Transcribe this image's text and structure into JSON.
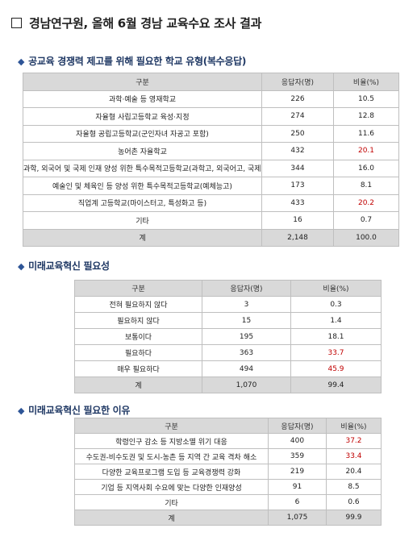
{
  "page": {
    "title": "경남연구원, 올해 6월 경남 교육수요 조사 결과"
  },
  "sections": [
    {
      "title": "공교육 경쟁력 제고를 위해 필요한 학교 유형(복수응답)",
      "headers": [
        "구분",
        "응답자(명)",
        "비율(%)"
      ],
      "rows": [
        {
          "label": "과학·예술 등 영재학교",
          "count": "226",
          "ratio": "10.5",
          "highlight": false
        },
        {
          "label": "자율형 사립고등학교 육성·지정",
          "count": "274",
          "ratio": "12.8",
          "highlight": false
        },
        {
          "label": "자율형 공립고등학교(군인자녀 자공고 포함)",
          "count": "250",
          "ratio": "11.6",
          "highlight": false
        },
        {
          "label": "농어촌 자율학교",
          "count": "432",
          "ratio": "20.1",
          "highlight": true
        },
        {
          "label": "과학, 외국어 및 국제 인재 양성 위한 특수목적고등학교(과학고, 외국어고, 국제고)",
          "count": "344",
          "ratio": "16.0",
          "highlight": false
        },
        {
          "label": "예술인 및 체육인 등 양성 위한 특수목적고등학교(예체능고)",
          "count": "173",
          "ratio": "8.1",
          "highlight": false
        },
        {
          "label": "직업계 고등학교(마이스터고, 특성화고 등)",
          "count": "433",
          "ratio": "20.2",
          "highlight": true
        },
        {
          "label": "기타",
          "count": "16",
          "ratio": "0.7",
          "highlight": false
        }
      ],
      "total": {
        "label": "계",
        "count": "2,148",
        "ratio": "100.0"
      }
    },
    {
      "title": "미래교육혁신 필요성",
      "headers": [
        "구분",
        "응답자(명)",
        "비율(%)"
      ],
      "rows": [
        {
          "label": "전혀 필요하지 않다",
          "count": "3",
          "ratio": "0.3",
          "highlight": false
        },
        {
          "label": "필요하지 않다",
          "count": "15",
          "ratio": "1.4",
          "highlight": false
        },
        {
          "label": "보통이다",
          "count": "195",
          "ratio": "18.1",
          "highlight": false
        },
        {
          "label": "필요하다",
          "count": "363",
          "ratio": "33.7",
          "highlight": true
        },
        {
          "label": "매우 필요하다",
          "count": "494",
          "ratio": "45.9",
          "highlight": true
        }
      ],
      "total": {
        "label": "계",
        "count": "1,070",
        "ratio": "99.4"
      }
    },
    {
      "title": "미래교육혁신 필요한 이유",
      "headers": [
        "구분",
        "응답자(명)",
        "비율(%)"
      ],
      "rows": [
        {
          "label": "학령인구 감소 등 지방소멸 위기 대응",
          "count": "400",
          "ratio": "37.2",
          "highlight": true
        },
        {
          "label": "수도권-비수도권 및 도시-농촌 등 지역 간 교육 격차 해소",
          "count": "359",
          "ratio": "33.4",
          "highlight": true
        },
        {
          "label": "다양한 교육프로그램 도입 등 교육경쟁력 강화",
          "count": "219",
          "ratio": "20.4",
          "highlight": false
        },
        {
          "label": "기업 등 지역사회 수요에 맞는 다양한 인재양성",
          "count": "91",
          "ratio": "8.5",
          "highlight": false
        },
        {
          "label": "기타",
          "count": "6",
          "ratio": "0.6",
          "highlight": false
        }
      ],
      "total": {
        "label": "계",
        "count": "1,075",
        "ratio": "99.9"
      }
    }
  ]
}
